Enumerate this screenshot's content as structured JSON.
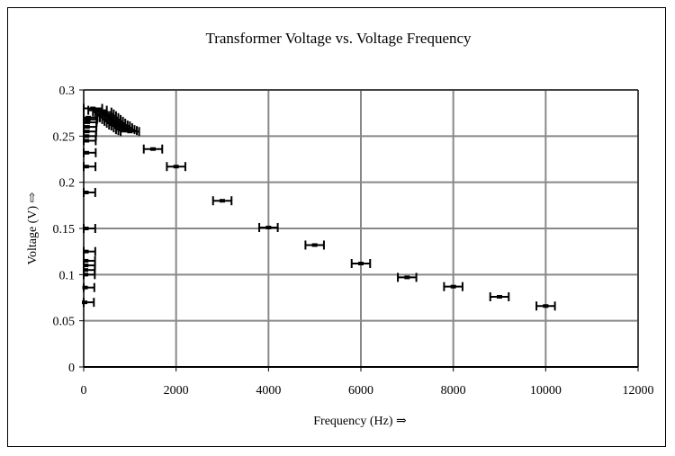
{
  "chart_data": {
    "type": "scatter",
    "title": "Transformer Voltage vs. Voltage Frequency",
    "xlabel": "Frequency (Hz) ⇒",
    "ylabel": "Voltage (V) ⇨",
    "xlim": [
      0,
      12000
    ],
    "ylim": [
      0,
      0.3
    ],
    "xticks": [
      0,
      2000,
      4000,
      6000,
      8000,
      10000,
      12000
    ],
    "yticks": [
      0,
      0.05,
      0.1,
      0.15,
      0.2,
      0.25,
      0.3
    ],
    "ytick_labels": [
      "0",
      "0.05",
      "0.1",
      "0.15",
      "0.2",
      "0.25",
      "0.3"
    ],
    "grid": true,
    "x_error": 200,
    "series": [
      {
        "name": "Voltage",
        "points": [
          [
            20,
            0.07
          ],
          [
            30,
            0.086
          ],
          [
            40,
            0.1
          ],
          [
            40,
            0.105
          ],
          [
            45,
            0.11
          ],
          [
            45,
            0.115
          ],
          [
            50,
            0.125
          ],
          [
            50,
            0.15
          ],
          [
            50,
            0.189
          ],
          [
            55,
            0.217
          ],
          [
            60,
            0.232
          ],
          [
            60,
            0.245
          ],
          [
            65,
            0.25
          ],
          [
            70,
            0.255
          ],
          [
            75,
            0.26
          ],
          [
            80,
            0.265
          ],
          [
            90,
            0.268
          ],
          [
            100,
            0.27
          ],
          [
            200,
            0.28
          ],
          [
            300,
            0.278
          ],
          [
            400,
            0.276
          ],
          [
            450,
            0.274
          ],
          [
            500,
            0.272
          ],
          [
            550,
            0.27
          ],
          [
            600,
            0.268
          ],
          [
            650,
            0.266
          ],
          [
            700,
            0.264
          ],
          [
            750,
            0.262
          ],
          [
            800,
            0.261
          ],
          [
            850,
            0.259
          ],
          [
            900,
            0.257
          ],
          [
            950,
            0.256
          ],
          [
            1000,
            0.255
          ],
          [
            1500,
            0.236
          ],
          [
            2000,
            0.217
          ],
          [
            3000,
            0.18
          ],
          [
            4000,
            0.151
          ],
          [
            5000,
            0.132
          ],
          [
            6000,
            0.112
          ],
          [
            7000,
            0.097
          ],
          [
            8000,
            0.087
          ],
          [
            9000,
            0.076
          ],
          [
            10000,
            0.066
          ]
        ]
      }
    ]
  }
}
